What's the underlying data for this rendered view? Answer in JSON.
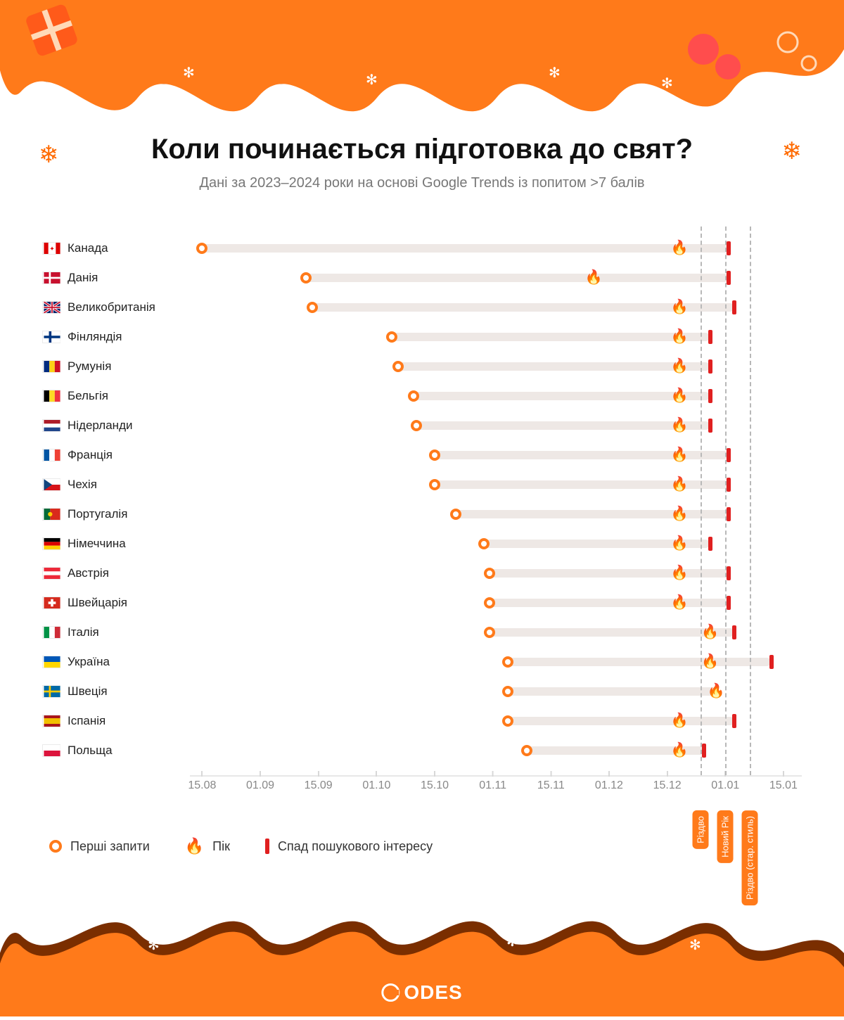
{
  "title": "Коли починається підготовка до свят?",
  "subtitle": "Дані за 2023–2024 роки на основі Google Trends із попитом >7 балів",
  "colors": {
    "accent": "#ff7a1a",
    "dark_accent": "#7a2e00",
    "track": "#eee8e5",
    "drop": "#e02020",
    "text": "#111111",
    "subtext": "#777777",
    "grid": "#e8e8e8"
  },
  "chart": {
    "type": "range-dot",
    "x_axis": {
      "ticks": [
        "15.08",
        "01.09",
        "15.09",
        "01.10",
        "15.10",
        "01.11",
        "15.11",
        "01.12",
        "15.12",
        "01.01",
        "15.01"
      ],
      "tick_positions_pct": [
        2,
        11.5,
        21,
        30.5,
        40,
        49.5,
        59,
        68.5,
        78,
        87.5,
        97
      ]
    },
    "reference_lines": [
      {
        "label": "Різдво",
        "pos_pct": 83.5
      },
      {
        "label": "Новий Рік",
        "pos_pct": 87.5
      },
      {
        "label": "Різдво (стар. стиль)",
        "pos_pct": 91.5
      }
    ],
    "rows": [
      {
        "country": "Канада",
        "flag": "ca",
        "start_pct": 2,
        "peak_pct": 80,
        "drop_pct": 88
      },
      {
        "country": "Данія",
        "flag": "dk",
        "start_pct": 19,
        "peak_pct": 66,
        "drop_pct": 88
      },
      {
        "country": "Великобританія",
        "flag": "gb",
        "start_pct": 20,
        "peak_pct": 80,
        "drop_pct": 89
      },
      {
        "country": "Фінляндія",
        "flag": "fi",
        "start_pct": 33,
        "peak_pct": 80,
        "drop_pct": 85
      },
      {
        "country": "Румунія",
        "flag": "ro",
        "start_pct": 34,
        "peak_pct": 80,
        "drop_pct": 85
      },
      {
        "country": "Бельгія",
        "flag": "be",
        "start_pct": 36.5,
        "peak_pct": 80,
        "drop_pct": 85
      },
      {
        "country": "Нідерланди",
        "flag": "nl",
        "start_pct": 37,
        "peak_pct": 80,
        "drop_pct": 85
      },
      {
        "country": "Франція",
        "flag": "fr",
        "start_pct": 40,
        "peak_pct": 80,
        "drop_pct": 88
      },
      {
        "country": "Чехія",
        "flag": "cz",
        "start_pct": 40,
        "peak_pct": 80,
        "drop_pct": 88
      },
      {
        "country": "Португалія",
        "flag": "pt",
        "start_pct": 43.5,
        "peak_pct": 80,
        "drop_pct": 88
      },
      {
        "country": "Німеччина",
        "flag": "de",
        "start_pct": 48,
        "peak_pct": 80,
        "drop_pct": 85
      },
      {
        "country": "Австрія",
        "flag": "at",
        "start_pct": 49,
        "peak_pct": 80,
        "drop_pct": 88
      },
      {
        "country": "Швейцарія",
        "flag": "ch",
        "start_pct": 49,
        "peak_pct": 80,
        "drop_pct": 88
      },
      {
        "country": "Італія",
        "flag": "it",
        "start_pct": 49,
        "peak_pct": 85,
        "drop_pct": 89
      },
      {
        "country": "Україна",
        "flag": "ua",
        "start_pct": 52,
        "peak_pct": 85,
        "drop_pct": 95
      },
      {
        "country": "Швеція",
        "flag": "se",
        "start_pct": 52,
        "peak_pct": 86,
        "drop_pct": null
      },
      {
        "country": "Іспанія",
        "flag": "es",
        "start_pct": 52,
        "peak_pct": 80,
        "drop_pct": 89
      },
      {
        "country": "Польща",
        "flag": "pl",
        "start_pct": 55,
        "peak_pct": 80,
        "drop_pct": 84
      }
    ]
  },
  "legend": {
    "start": "Перші запити",
    "peak": "Пік",
    "drop": "Спад пошукового інтересу"
  },
  "footer_logo": "ODES"
}
